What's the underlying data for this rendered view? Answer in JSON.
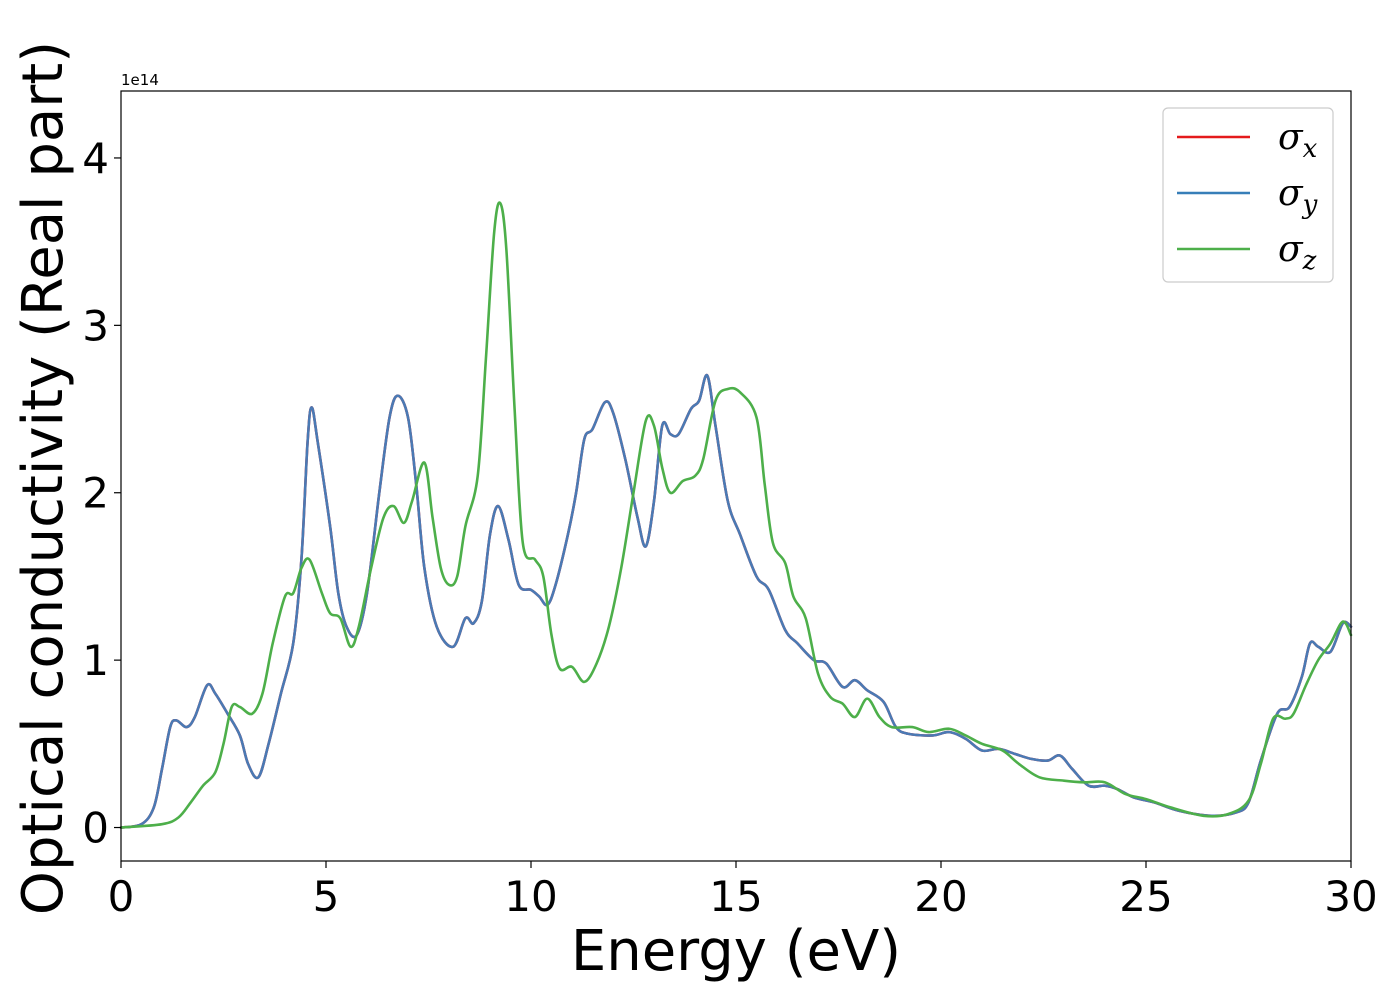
{
  "chart_data": {
    "type": "line",
    "xlabel": "Energy (eV)",
    "ylabel": "Optical conductivity (Real part)",
    "y_offset_label": "1e14",
    "xlim": [
      0,
      30
    ],
    "ylim": [
      -0.2,
      4.4
    ],
    "y_scale_factor": 100000000000000.0,
    "x_ticks": [
      0,
      5,
      10,
      15,
      20,
      25,
      30
    ],
    "y_ticks": [
      0,
      1,
      2,
      3,
      4
    ],
    "grid": false,
    "legend_position": "top-right",
    "legend": [
      {
        "symbol": "σ",
        "sub": "x",
        "color": "#e41a1c"
      },
      {
        "symbol": "σ",
        "sub": "y",
        "color": "#377eb8"
      },
      {
        "symbol": "σ",
        "sub": "z",
        "color": "#4daf4a"
      }
    ],
    "series": [
      {
        "name": "σx",
        "color": "#e41a1c",
        "points": [
          [
            0,
            0
          ],
          [
            0.5,
            0.02
          ],
          [
            0.8,
            0.12
          ],
          [
            1.0,
            0.35
          ],
          [
            1.2,
            0.6
          ],
          [
            1.35,
            0.64
          ],
          [
            1.6,
            0.6
          ],
          [
            1.8,
            0.66
          ],
          [
            2.1,
            0.85
          ],
          [
            2.3,
            0.8
          ],
          [
            2.6,
            0.68
          ],
          [
            2.9,
            0.55
          ],
          [
            3.1,
            0.38
          ],
          [
            3.35,
            0.3
          ],
          [
            3.6,
            0.5
          ],
          [
            3.9,
            0.8
          ],
          [
            4.2,
            1.1
          ],
          [
            4.4,
            1.6
          ],
          [
            4.55,
            2.3
          ],
          [
            4.65,
            2.51
          ],
          [
            4.8,
            2.3
          ],
          [
            5.1,
            1.8
          ],
          [
            5.3,
            1.4
          ],
          [
            5.5,
            1.2
          ],
          [
            5.75,
            1.15
          ],
          [
            6.0,
            1.4
          ],
          [
            6.3,
            2.0
          ],
          [
            6.55,
            2.45
          ],
          [
            6.75,
            2.58
          ],
          [
            7.0,
            2.45
          ],
          [
            7.2,
            2.05
          ],
          [
            7.4,
            1.55
          ],
          [
            7.7,
            1.2
          ],
          [
            8.1,
            1.08
          ],
          [
            8.4,
            1.25
          ],
          [
            8.6,
            1.22
          ],
          [
            8.8,
            1.35
          ],
          [
            9.0,
            1.75
          ],
          [
            9.2,
            1.92
          ],
          [
            9.45,
            1.72
          ],
          [
            9.7,
            1.45
          ],
          [
            10.0,
            1.42
          ],
          [
            10.2,
            1.38
          ],
          [
            10.4,
            1.33
          ],
          [
            10.6,
            1.45
          ],
          [
            10.9,
            1.75
          ],
          [
            11.1,
            2.0
          ],
          [
            11.3,
            2.32
          ],
          [
            11.5,
            2.38
          ],
          [
            11.8,
            2.54
          ],
          [
            12.0,
            2.48
          ],
          [
            12.3,
            2.2
          ],
          [
            12.6,
            1.85
          ],
          [
            12.8,
            1.68
          ],
          [
            13.0,
            1.95
          ],
          [
            13.2,
            2.4
          ],
          [
            13.4,
            2.35
          ],
          [
            13.6,
            2.35
          ],
          [
            13.9,
            2.5
          ],
          [
            14.1,
            2.55
          ],
          [
            14.3,
            2.7
          ],
          [
            14.5,
            2.4
          ],
          [
            14.8,
            1.95
          ],
          [
            15.1,
            1.75
          ],
          [
            15.5,
            1.5
          ],
          [
            15.8,
            1.42
          ],
          [
            16.2,
            1.18
          ],
          [
            16.5,
            1.1
          ],
          [
            16.9,
            1.0
          ],
          [
            17.2,
            0.98
          ],
          [
            17.6,
            0.84
          ],
          [
            17.9,
            0.88
          ],
          [
            18.2,
            0.82
          ],
          [
            18.6,
            0.75
          ],
          [
            18.9,
            0.6
          ],
          [
            19.2,
            0.56
          ],
          [
            19.8,
            0.55
          ],
          [
            20.2,
            0.57
          ],
          [
            20.6,
            0.53
          ],
          [
            21.0,
            0.46
          ],
          [
            21.4,
            0.47
          ],
          [
            21.8,
            0.44
          ],
          [
            22.2,
            0.41
          ],
          [
            22.6,
            0.4
          ],
          [
            22.9,
            0.43
          ],
          [
            23.2,
            0.35
          ],
          [
            23.6,
            0.25
          ],
          [
            24.0,
            0.25
          ],
          [
            24.3,
            0.23
          ],
          [
            24.7,
            0.18
          ],
          [
            25.2,
            0.15
          ],
          [
            25.8,
            0.1
          ],
          [
            26.6,
            0.07
          ],
          [
            27.2,
            0.09
          ],
          [
            27.5,
            0.15
          ],
          [
            27.8,
            0.4
          ],
          [
            28.2,
            0.68
          ],
          [
            28.5,
            0.72
          ],
          [
            28.8,
            0.9
          ],
          [
            29.0,
            1.1
          ],
          [
            29.2,
            1.08
          ],
          [
            29.5,
            1.05
          ],
          [
            29.8,
            1.22
          ],
          [
            30.0,
            1.2
          ]
        ]
      },
      {
        "name": "σy",
        "color": "#4a7ab4",
        "points": [
          [
            0,
            0
          ],
          [
            0.5,
            0.02
          ],
          [
            0.8,
            0.12
          ],
          [
            1.0,
            0.35
          ],
          [
            1.2,
            0.6
          ],
          [
            1.35,
            0.64
          ],
          [
            1.6,
            0.6
          ],
          [
            1.8,
            0.66
          ],
          [
            2.1,
            0.85
          ],
          [
            2.3,
            0.8
          ],
          [
            2.6,
            0.68
          ],
          [
            2.9,
            0.55
          ],
          [
            3.1,
            0.38
          ],
          [
            3.35,
            0.3
          ],
          [
            3.6,
            0.5
          ],
          [
            3.9,
            0.8
          ],
          [
            4.2,
            1.1
          ],
          [
            4.4,
            1.6
          ],
          [
            4.55,
            2.3
          ],
          [
            4.65,
            2.51
          ],
          [
            4.8,
            2.3
          ],
          [
            5.1,
            1.8
          ],
          [
            5.3,
            1.4
          ],
          [
            5.5,
            1.2
          ],
          [
            5.75,
            1.15
          ],
          [
            6.0,
            1.4
          ],
          [
            6.3,
            2.0
          ],
          [
            6.55,
            2.45
          ],
          [
            6.75,
            2.58
          ],
          [
            7.0,
            2.45
          ],
          [
            7.2,
            2.05
          ],
          [
            7.4,
            1.55
          ],
          [
            7.7,
            1.2
          ],
          [
            8.1,
            1.08
          ],
          [
            8.4,
            1.25
          ],
          [
            8.6,
            1.22
          ],
          [
            8.8,
            1.35
          ],
          [
            9.0,
            1.75
          ],
          [
            9.2,
            1.92
          ],
          [
            9.45,
            1.72
          ],
          [
            9.7,
            1.45
          ],
          [
            10.0,
            1.42
          ],
          [
            10.2,
            1.38
          ],
          [
            10.4,
            1.33
          ],
          [
            10.6,
            1.45
          ],
          [
            10.9,
            1.75
          ],
          [
            11.1,
            2.0
          ],
          [
            11.3,
            2.32
          ],
          [
            11.5,
            2.38
          ],
          [
            11.8,
            2.54
          ],
          [
            12.0,
            2.48
          ],
          [
            12.3,
            2.2
          ],
          [
            12.6,
            1.85
          ],
          [
            12.8,
            1.68
          ],
          [
            13.0,
            1.95
          ],
          [
            13.2,
            2.4
          ],
          [
            13.4,
            2.35
          ],
          [
            13.6,
            2.35
          ],
          [
            13.9,
            2.5
          ],
          [
            14.1,
            2.55
          ],
          [
            14.3,
            2.7
          ],
          [
            14.5,
            2.4
          ],
          [
            14.8,
            1.95
          ],
          [
            15.1,
            1.75
          ],
          [
            15.5,
            1.5
          ],
          [
            15.8,
            1.42
          ],
          [
            16.2,
            1.18
          ],
          [
            16.5,
            1.1
          ],
          [
            16.9,
            1.0
          ],
          [
            17.2,
            0.98
          ],
          [
            17.6,
            0.84
          ],
          [
            17.9,
            0.88
          ],
          [
            18.2,
            0.82
          ],
          [
            18.6,
            0.75
          ],
          [
            18.9,
            0.6
          ],
          [
            19.2,
            0.56
          ],
          [
            19.8,
            0.55
          ],
          [
            20.2,
            0.57
          ],
          [
            20.6,
            0.53
          ],
          [
            21.0,
            0.46
          ],
          [
            21.4,
            0.47
          ],
          [
            21.8,
            0.44
          ],
          [
            22.2,
            0.41
          ],
          [
            22.6,
            0.4
          ],
          [
            22.9,
            0.43
          ],
          [
            23.2,
            0.35
          ],
          [
            23.6,
            0.25
          ],
          [
            24.0,
            0.25
          ],
          [
            24.3,
            0.23
          ],
          [
            24.7,
            0.18
          ],
          [
            25.2,
            0.15
          ],
          [
            25.8,
            0.1
          ],
          [
            26.6,
            0.07
          ],
          [
            27.2,
            0.09
          ],
          [
            27.5,
            0.15
          ],
          [
            27.8,
            0.4
          ],
          [
            28.2,
            0.68
          ],
          [
            28.5,
            0.72
          ],
          [
            28.8,
            0.9
          ],
          [
            29.0,
            1.1
          ],
          [
            29.2,
            1.08
          ],
          [
            29.5,
            1.05
          ],
          [
            29.8,
            1.22
          ],
          [
            30.0,
            1.2
          ]
        ]
      },
      {
        "name": "σz",
        "color": "#4daf4a",
        "points": [
          [
            0,
            0
          ],
          [
            1.0,
            0.02
          ],
          [
            1.4,
            0.06
          ],
          [
            1.7,
            0.15
          ],
          [
            2.0,
            0.25
          ],
          [
            2.3,
            0.33
          ],
          [
            2.5,
            0.5
          ],
          [
            2.7,
            0.72
          ],
          [
            2.9,
            0.72
          ],
          [
            3.2,
            0.68
          ],
          [
            3.45,
            0.8
          ],
          [
            3.7,
            1.1
          ],
          [
            4.0,
            1.38
          ],
          [
            4.2,
            1.4
          ],
          [
            4.4,
            1.55
          ],
          [
            4.6,
            1.6
          ],
          [
            4.9,
            1.4
          ],
          [
            5.1,
            1.28
          ],
          [
            5.35,
            1.25
          ],
          [
            5.6,
            1.08
          ],
          [
            5.8,
            1.2
          ],
          [
            6.1,
            1.55
          ],
          [
            6.4,
            1.85
          ],
          [
            6.65,
            1.92
          ],
          [
            6.9,
            1.82
          ],
          [
            7.1,
            1.95
          ],
          [
            7.4,
            2.18
          ],
          [
            7.6,
            1.85
          ],
          [
            7.8,
            1.55
          ],
          [
            8.0,
            1.45
          ],
          [
            8.2,
            1.5
          ],
          [
            8.4,
            1.8
          ],
          [
            8.7,
            2.1
          ],
          [
            8.9,
            2.8
          ],
          [
            9.1,
            3.55
          ],
          [
            9.25,
            3.73
          ],
          [
            9.4,
            3.45
          ],
          [
            9.6,
            2.5
          ],
          [
            9.8,
            1.7
          ],
          [
            10.1,
            1.6
          ],
          [
            10.3,
            1.5
          ],
          [
            10.5,
            1.15
          ],
          [
            10.7,
            0.95
          ],
          [
            11.0,
            0.96
          ],
          [
            11.3,
            0.87
          ],
          [
            11.6,
            0.98
          ],
          [
            11.9,
            1.2
          ],
          [
            12.2,
            1.55
          ],
          [
            12.5,
            2.0
          ],
          [
            12.8,
            2.43
          ],
          [
            13.0,
            2.4
          ],
          [
            13.2,
            2.15
          ],
          [
            13.4,
            2.0
          ],
          [
            13.7,
            2.07
          ],
          [
            14.0,
            2.1
          ],
          [
            14.2,
            2.2
          ],
          [
            14.5,
            2.55
          ],
          [
            14.8,
            2.62
          ],
          [
            15.1,
            2.6
          ],
          [
            15.5,
            2.45
          ],
          [
            15.7,
            2.05
          ],
          [
            15.9,
            1.7
          ],
          [
            16.2,
            1.58
          ],
          [
            16.4,
            1.38
          ],
          [
            16.7,
            1.25
          ],
          [
            17.0,
            0.92
          ],
          [
            17.3,
            0.78
          ],
          [
            17.6,
            0.74
          ],
          [
            17.9,
            0.66
          ],
          [
            18.2,
            0.77
          ],
          [
            18.5,
            0.66
          ],
          [
            18.8,
            0.6
          ],
          [
            19.3,
            0.6
          ],
          [
            19.7,
            0.57
          ],
          [
            20.2,
            0.59
          ],
          [
            20.6,
            0.55
          ],
          [
            21.0,
            0.5
          ],
          [
            21.5,
            0.46
          ],
          [
            21.9,
            0.38
          ],
          [
            22.4,
            0.3
          ],
          [
            23.0,
            0.28
          ],
          [
            23.5,
            0.27
          ],
          [
            24.0,
            0.27
          ],
          [
            24.5,
            0.2
          ],
          [
            25.0,
            0.17
          ],
          [
            25.6,
            0.12
          ],
          [
            26.4,
            0.07
          ],
          [
            27.0,
            0.08
          ],
          [
            27.5,
            0.16
          ],
          [
            27.8,
            0.38
          ],
          [
            28.1,
            0.65
          ],
          [
            28.4,
            0.65
          ],
          [
            28.6,
            0.68
          ],
          [
            28.9,
            0.85
          ],
          [
            29.2,
            1.0
          ],
          [
            29.5,
            1.1
          ],
          [
            29.8,
            1.23
          ],
          [
            30.0,
            1.15
          ]
        ]
      }
    ]
  }
}
